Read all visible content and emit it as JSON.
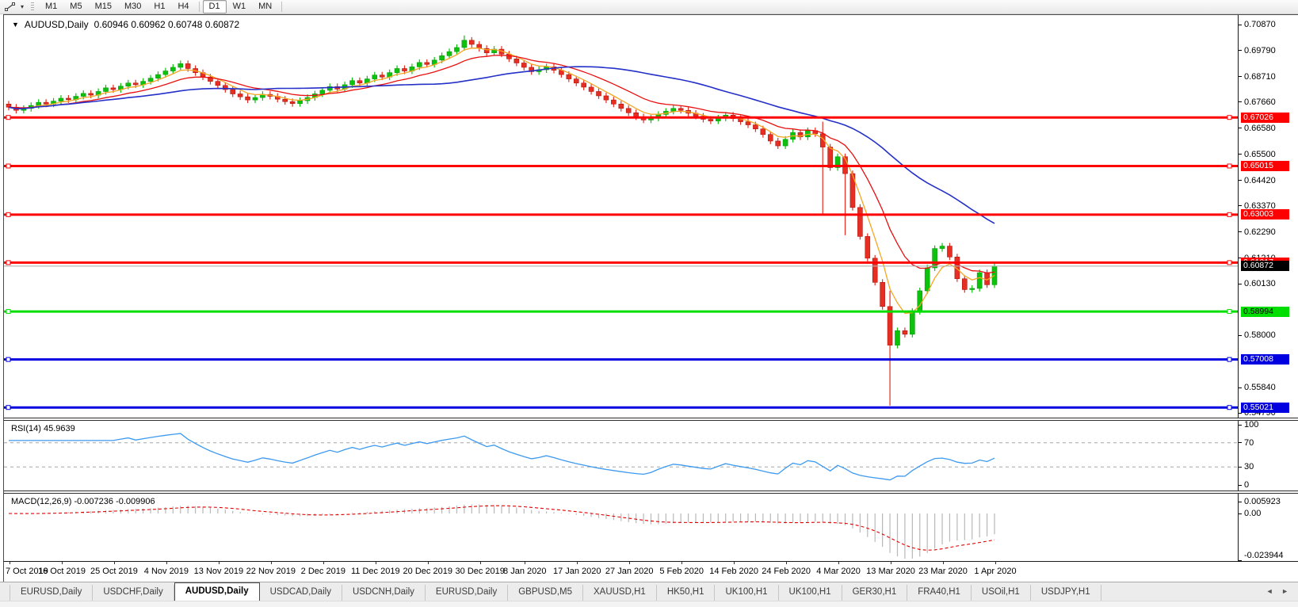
{
  "toolbar": {
    "timeframes": [
      "M1",
      "M5",
      "M15",
      "M30",
      "H1",
      "H4",
      "D1",
      "W1",
      "MN"
    ],
    "active_timeframe": "D1"
  },
  "icons": {
    "chart_menu": "▼",
    "tool_caret": "▾",
    "tab_scroll_left": "◄",
    "tab_scroll_right": "►"
  },
  "chart": {
    "title": "AUDUSD,Daily",
    "quotes": "0.60946 0.60962 0.60748 0.60872"
  },
  "chart_data": {
    "type": "candlestick",
    "symbol": "AUDUSD",
    "timeframe": "Daily",
    "ohlc_display": {
      "open": "0.60946",
      "high": "0.60962",
      "low": "0.60748",
      "close": "0.60872"
    },
    "x_labels": [
      "7 Oct 2019",
      "16 Oct 2019",
      "25 Oct 2019",
      "4 Nov 2019",
      "13 Nov 2019",
      "22 Nov 2019",
      "2 Dec 2019",
      "11 Dec 2019",
      "20 Dec 2019",
      "30 Dec 2019",
      "8 Jan 2020",
      "17 Jan 2020",
      "27 Jan 2020",
      "5 Feb 2020",
      "14 Feb 2020",
      "24 Feb 2020",
      "4 Mar 2020",
      "13 Mar 2020",
      "23 Mar 2020",
      "1 Apr 2020"
    ],
    "first_open": 0.6758,
    "default_wick": 0.0013,
    "closes": [
      0.6745,
      0.6732,
      0.674,
      0.6752,
      0.6765,
      0.6758,
      0.677,
      0.6782,
      0.6776,
      0.679,
      0.6802,
      0.6795,
      0.681,
      0.6825,
      0.6818,
      0.6832,
      0.6845,
      0.6838,
      0.6852,
      0.6865,
      0.688,
      0.6895,
      0.691,
      0.6925,
      0.6905,
      0.6888,
      0.687,
      0.6852,
      0.6835,
      0.6818,
      0.68,
      0.6788,
      0.6775,
      0.6785,
      0.6798,
      0.679,
      0.6778,
      0.6768,
      0.676,
      0.6772,
      0.6785,
      0.68,
      0.6815,
      0.683,
      0.682,
      0.6838,
      0.6855,
      0.6845,
      0.6862,
      0.6878,
      0.687,
      0.6888,
      0.6905,
      0.6895,
      0.6912,
      0.693,
      0.6922,
      0.694,
      0.6958,
      0.6975,
      0.6992,
      0.7022,
      0.7005,
      0.6988,
      0.697,
      0.6985,
      0.6965,
      0.6945,
      0.6928,
      0.691,
      0.6892,
      0.69,
      0.6912,
      0.6898,
      0.688,
      0.6862,
      0.6845,
      0.6828,
      0.681,
      0.6792,
      0.6775,
      0.6758,
      0.674,
      0.6722,
      0.6705,
      0.6692,
      0.67,
      0.6715,
      0.6728,
      0.674,
      0.6732,
      0.672,
      0.6708,
      0.6695,
      0.6688,
      0.67,
      0.6712,
      0.6698,
      0.6685,
      0.6672,
      0.6655,
      0.6632,
      0.6605,
      0.6585,
      0.6612,
      0.664,
      0.6622,
      0.6648,
      0.6635,
      0.658,
      0.6495,
      0.654,
      0.647,
      0.633,
      0.621,
      0.612,
      0.602,
      0.592,
      0.576,
      0.582,
      0.5805,
      0.59,
      0.5985,
      0.608,
      0.616,
      0.617,
      0.6125,
      0.6035,
      0.599,
      0.5995,
      0.606,
      0.601,
      0.6087
    ],
    "wick_overrides": {
      "61": {
        "h": 0.7042
      },
      "109": {
        "h": 0.6685,
        "l": 0.63
      },
      "112": {
        "l": 0.6215
      },
      "118": {
        "h": 0.5985,
        "l": 0.551
      }
    },
    "price_axis_ticks": [
      "0.70870",
      "0.69790",
      "0.68710",
      "0.67660",
      "0.66580",
      "0.65500",
      "0.64420",
      "0.63370",
      "0.62290",
      "0.61210",
      "0.60130",
      "0.58000",
      "0.55840",
      "0.54790"
    ],
    "price_axis_range": [
      0.546,
      0.7126
    ],
    "levels": [
      {
        "value": "0.67026",
        "price": 0.67026,
        "color": "#FF0000",
        "text_color": "#FFFFFF"
      },
      {
        "value": "0.65015",
        "price": 0.65015,
        "color": "#FF0000",
        "text_color": "#FFFFFF"
      },
      {
        "value": "0.63003",
        "price": 0.63003,
        "color": "#FF0000",
        "text_color": "#FFFFFF"
      },
      {
        "value": "0.61017",
        "price": 0.61017,
        "color": "#FF0000",
        "text_color": "#FFFFFF"
      },
      {
        "value": "0.58994",
        "price": 0.58994,
        "color": "#00DD00",
        "text_color": "#000000"
      },
      {
        "value": "0.57008",
        "price": 0.57008,
        "color": "#0000E0",
        "text_color": "#FFFFFF"
      },
      {
        "value": "0.55021",
        "price": 0.55021,
        "color": "#0000E0",
        "text_color": "#FFFFFF"
      }
    ],
    "current_price": {
      "value": "0.60872",
      "price": 0.60872,
      "line_color": "#B4B4B4",
      "label_bg": "#000000",
      "label_text": "#FFFFFF"
    },
    "moving_averages": [
      {
        "name": "fast",
        "type": "EMA",
        "period": 5,
        "color": "#F5A623"
      },
      {
        "name": "medium",
        "type": "EMA",
        "period": 13,
        "color": "#E81010"
      },
      {
        "name": "slow",
        "type": "SMA",
        "period": 34,
        "color": "#2430C8"
      }
    ],
    "rsi": {
      "label": "RSI(14) 45.9639",
      "period": 14,
      "current": 45.9639,
      "ticks": [
        "100",
        "70",
        "30",
        "0"
      ],
      "tick_values": [
        100,
        70,
        30,
        0
      ],
      "bands": [
        70,
        30
      ],
      "range": [
        0,
        100
      ],
      "color": "#3D9AEF"
    },
    "macd": {
      "label": "MACD(12,26,9) -0.007236 -0.009906",
      "fast": 12,
      "slow": 26,
      "signal": 9,
      "macd_current": -0.007236,
      "signal_current": -0.009906,
      "ticks": [
        "0.005923",
        "0.00",
        "-0.023944"
      ],
      "tick_values": [
        0.005923,
        0.0,
        -0.023944
      ],
      "range": [
        -0.023944,
        0.005923
      ],
      "hist_color": "#B8B8B8",
      "signal_color": "#E00000"
    }
  },
  "colors": {
    "bull": "#0DC20D",
    "bear": "#E62E22",
    "bull_edge": "#089908",
    "bear_edge": "#B01810",
    "rsi_band": "#A6A6A6"
  },
  "tabs": {
    "items": [
      "EURUSD,Daily",
      "USDCHF,Daily",
      "AUDUSD,Daily",
      "USDCAD,Daily",
      "USDCNH,Daily",
      "EURUSD,Daily",
      "GBPUSD,M5",
      "XAUUSD,H1",
      "HK50,H1",
      "UK100,H1",
      "UK100,H1",
      "GER30,H1",
      "FRA40,H1",
      "USOil,H1",
      "USDJPY,H1"
    ],
    "active_index": 2
  }
}
